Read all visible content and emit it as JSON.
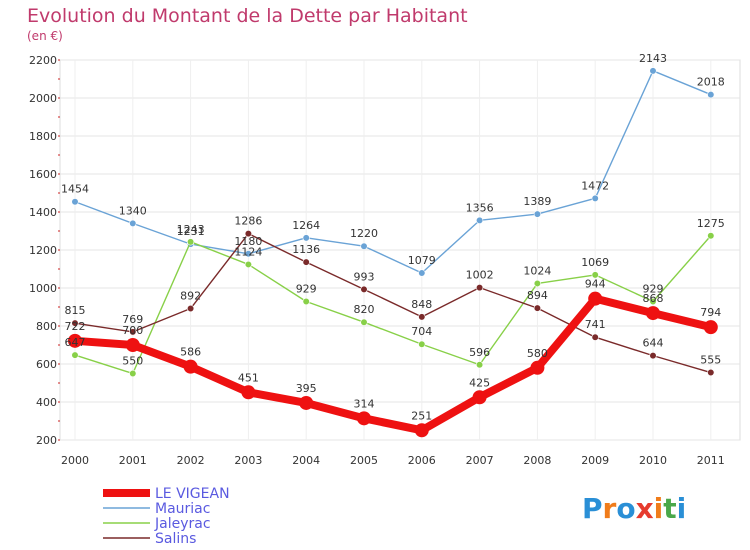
{
  "chart_data": {
    "type": "line",
    "title": "Evolution du Montant de la Dette par Habitant",
    "subtitle": "(en €)",
    "categories": [
      "2000",
      "2001",
      "2002",
      "2003",
      "2004",
      "2005",
      "2006",
      "2007",
      "2008",
      "2009",
      "2010",
      "2011"
    ],
    "ylim": [
      200,
      2200
    ],
    "yticks": [
      200,
      400,
      600,
      800,
      1000,
      1200,
      1400,
      1600,
      1800,
      2000,
      2200
    ],
    "grid": true,
    "legend_position": "bottom-left",
    "series": [
      {
        "name": "LE VIGEAN",
        "color": "#ee1111",
        "values": [
          722,
          700,
          586,
          451,
          395,
          314,
          251,
          425,
          580,
          944,
          868,
          794
        ]
      },
      {
        "name": "Mauriac",
        "color": "#6aa3d6",
        "values": [
          1454,
          1340,
          1231,
          1180,
          1264,
          1220,
          1079,
          1356,
          1389,
          1472,
          2143,
          2018
        ]
      },
      {
        "name": "Jaleyrac",
        "color": "#88d048",
        "values": [
          647,
          550,
          1243,
          1124,
          929,
          820,
          704,
          596,
          1024,
          1069,
          929,
          1275
        ]
      },
      {
        "name": "Salins",
        "color": "#7a2a2a",
        "values": [
          815,
          769,
          892,
          1286,
          1136,
          993,
          848,
          1002,
          894,
          741,
          644,
          555
        ]
      }
    ]
  },
  "logo": {
    "text": "Proxiti",
    "letters": [
      "P",
      "r",
      "o",
      "x",
      "i",
      "t",
      "i"
    ],
    "colors": [
      "#2a8fd6",
      "#f07c1a",
      "#2a8fd6",
      "#e63b2e",
      "#f07c1a",
      "#4aa84a",
      "#2a8fd6"
    ]
  }
}
